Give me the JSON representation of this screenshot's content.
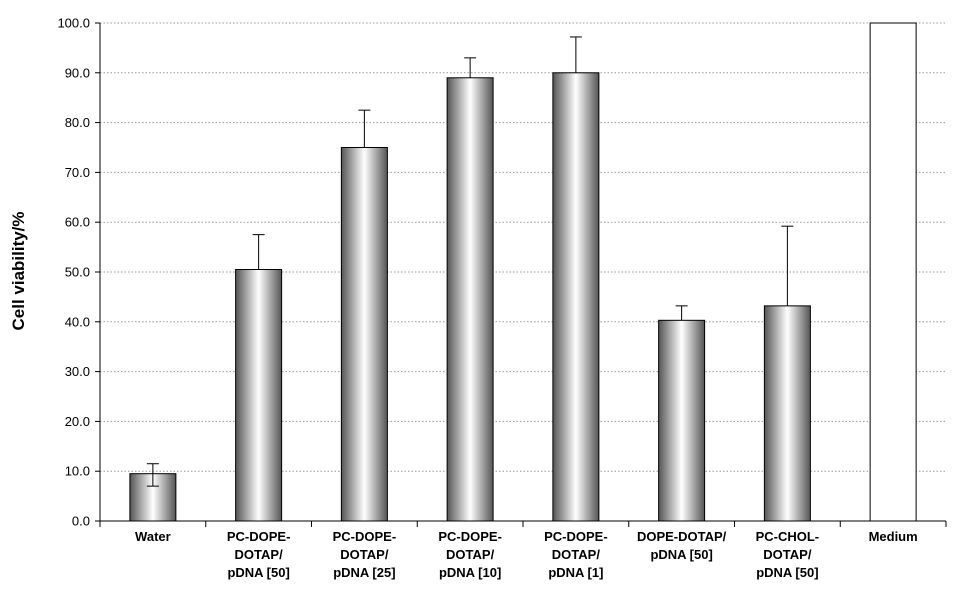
{
  "chart_data": {
    "type": "bar",
    "title": "",
    "xlabel": "",
    "ylabel": "Cell viability/%",
    "ylim": [
      0,
      100
    ],
    "ytick_step": 10,
    "ytick_labels": [
      "0.0",
      "10.0",
      "20.0",
      "30.0",
      "40.0",
      "50.0",
      "60.0",
      "70.0",
      "80.0",
      "90.0",
      "100.0"
    ],
    "grid": "horizontal dotted",
    "categories": [
      [
        "Water"
      ],
      [
        "PC-DOPE-",
        "DOTAP/",
        "pDNA [50]"
      ],
      [
        "PC-DOPE-",
        "DOTAP/",
        "pDNA [25]"
      ],
      [
        "PC-DOPE-",
        "DOTAP/",
        "pDNA [10]"
      ],
      [
        "PC-DOPE-",
        "DOTAP/",
        "pDNA [1]"
      ],
      [
        "DOPE-DOTAP/",
        "pDNA [50]"
      ],
      [
        "PC-CHOL-",
        "DOTAP/",
        "pDNA [50]"
      ],
      [
        "Medium"
      ]
    ],
    "values": [
      9.5,
      50.5,
      75.0,
      89.0,
      90.0,
      40.3,
      43.2,
      100.0
    ],
    "error_upper": [
      11.5,
      57.5,
      82.5,
      93.0,
      97.2,
      43.2,
      59.2,
      null
    ],
    "error_lower": [
      7.0,
      null,
      null,
      null,
      null,
      null,
      null,
      null
    ],
    "bar_fill": [
      "gradient",
      "gradient",
      "gradient",
      "gradient",
      "gradient",
      "gradient",
      "gradient",
      "white"
    ]
  }
}
